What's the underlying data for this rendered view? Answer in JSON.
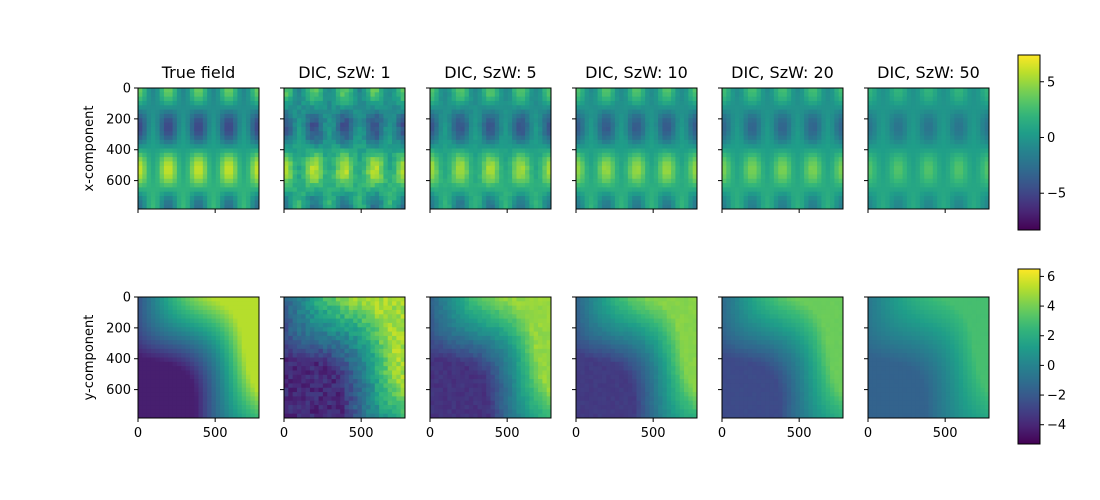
{
  "chart_data": {
    "type": "heatmap",
    "colormap": "viridis",
    "column_titles": [
      "True field",
      "DIC, SzW: 1",
      "DIC, SzW: 5",
      "DIC, SzW: 10",
      "DIC, SzW: 20",
      "DIC, SzW: 50"
    ],
    "row_labels": [
      "x-component",
      "y-component"
    ],
    "image_extent": [
      0,
      784
    ],
    "x_ticks": [
      "0",
      "500"
    ],
    "y_ticks": [
      "0",
      "200",
      "400",
      "600"
    ],
    "colorbars": [
      {
        "row": "x-component",
        "range": [
          -8.3,
          7.4
        ],
        "ticks": [
          -5,
          0,
          5
        ],
        "tick_labels": [
          "−5",
          "0",
          "5"
        ]
      },
      {
        "row": "y-component",
        "range": [
          -5.3,
          6.5
        ],
        "ticks": [
          -4,
          -2,
          0,
          2,
          4,
          6
        ],
        "tick_labels": [
          "−4",
          "−2",
          "0",
          "2",
          "4",
          "6"
        ]
      }
    ]
  }
}
